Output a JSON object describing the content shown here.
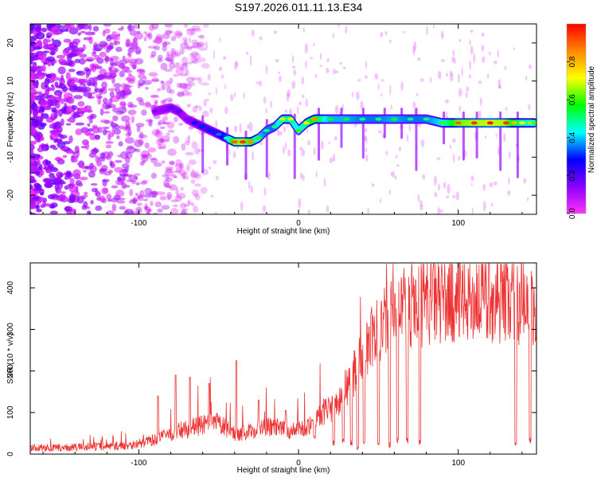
{
  "title": "S197.2026.011.11.13.E34",
  "chart_data": [
    {
      "type": "heatmap",
      "title": "S197.2026.011.11.13.E34",
      "xlabel": "Height of straight line (km)",
      "ylabel": "Frequency (Hz)",
      "xlim": [
        -168,
        149
      ],
      "ylim": [
        -25,
        25
      ],
      "xticks": [
        -100,
        0,
        100
      ],
      "yticks": [
        -20,
        -10,
        0,
        10,
        20
      ],
      "colorbar": {
        "label": "Normalized spectral amplitude",
        "range": [
          0,
          1
        ],
        "ticks": [
          0.0,
          0.2,
          0.4,
          0.6,
          0.8
        ],
        "tick_labels": [
          "0.0",
          "0.2",
          "0.4",
          "0.6",
          "0.8"
        ],
        "colors": [
          "#ff33ff",
          "#8800ff",
          "#0000ff",
          "#00ffff",
          "#00ff00",
          "#ffff00",
          "#ff8800",
          "#ff0000"
        ]
      },
      "ridge": {
        "x": [
          -90,
          -80,
          -75,
          -70,
          -65,
          -60,
          -55,
          -50,
          -45,
          -40,
          -35,
          -30,
          -25,
          -20,
          -15,
          -10,
          -5,
          0,
          5,
          10,
          20,
          30,
          40,
          50,
          60,
          70,
          80,
          90,
          100,
          110,
          120,
          130,
          135,
          140,
          145,
          148
        ],
        "y": [
          2,
          3,
          2,
          0,
          -1,
          -2,
          -3,
          -4,
          -5,
          -6,
          -6,
          -6,
          -5,
          -3,
          -2,
          0,
          0,
          -3,
          -1,
          0,
          0,
          0,
          0,
          0,
          0,
          0,
          0,
          -1,
          -1,
          -1,
          -1,
          -1,
          -1,
          -1,
          -1,
          -1
        ],
        "amplitude": [
          0.15,
          0.2,
          0.2,
          0.15,
          0.25,
          0.3,
          0.3,
          0.35,
          0.45,
          0.9,
          0.95,
          0.85,
          0.6,
          0.5,
          0.5,
          0.7,
          0.7,
          0.6,
          0.7,
          0.85,
          0.55,
          0.55,
          0.5,
          0.5,
          0.55,
          0.5,
          0.5,
          0.6,
          0.9,
          0.95,
          0.98,
          0.95,
          0.8,
          0.7,
          0.65,
          0.6
        ]
      }
    },
    {
      "type": "line",
      "xlabel": "Height of straight line (km)",
      "ylabel": "SNR (10 * v/v)",
      "xlim": [
        -168,
        149
      ],
      "ylim": [
        0,
        460
      ],
      "xticks": [
        -100,
        0,
        100
      ],
      "yticks": [
        0,
        100,
        200,
        300,
        400
      ],
      "color": "#ee3333",
      "series": [
        {
          "name": "SNR",
          "x": [
            -168,
            -150,
            -130,
            -110,
            -100,
            -90,
            -80,
            -70,
            -60,
            -50,
            -45,
            -40,
            -35,
            -30,
            -25,
            -20,
            -15,
            -10,
            -5,
            0,
            5,
            10,
            15,
            20,
            25,
            30,
            35,
            40,
            45,
            50,
            55,
            60,
            70,
            80,
            90,
            100,
            110,
            120,
            130,
            135,
            140,
            145,
            149
          ],
          "y": [
            15,
            15,
            18,
            20,
            25,
            35,
            50,
            60,
            70,
            75,
            60,
            50,
            50,
            55,
            60,
            65,
            65,
            60,
            55,
            60,
            65,
            85,
            100,
            110,
            130,
            160,
            200,
            240,
            270,
            300,
            320,
            340,
            355,
            365,
            370,
            372,
            374,
            375,
            375,
            372,
            370,
            350,
            340
          ]
        }
      ],
      "spikes_up": [
        {
          "x": -88,
          "y": 140
        },
        {
          "x": -77,
          "y": 190
        },
        {
          "x": -68,
          "y": 185
        },
        {
          "x": -56,
          "y": 170
        },
        {
          "x": -39,
          "y": 225
        },
        {
          "x": -25,
          "y": 130
        },
        {
          "x": -8,
          "y": 105
        }
      ],
      "dropouts": [
        {
          "x": 10,
          "y": 35
        },
        {
          "x": 22,
          "y": 20
        },
        {
          "x": 28,
          "y": 25
        },
        {
          "x": 33,
          "y": 20
        },
        {
          "x": 37,
          "y": 10
        },
        {
          "x": 41,
          "y": 20
        },
        {
          "x": 50,
          "y": 20
        },
        {
          "x": 57,
          "y": 15
        },
        {
          "x": 62,
          "y": 25
        },
        {
          "x": 68,
          "y": 25
        },
        {
          "x": 76,
          "y": 20
        },
        {
          "x": 136,
          "y": 20
        },
        {
          "x": 145,
          "y": 25
        }
      ]
    }
  ]
}
